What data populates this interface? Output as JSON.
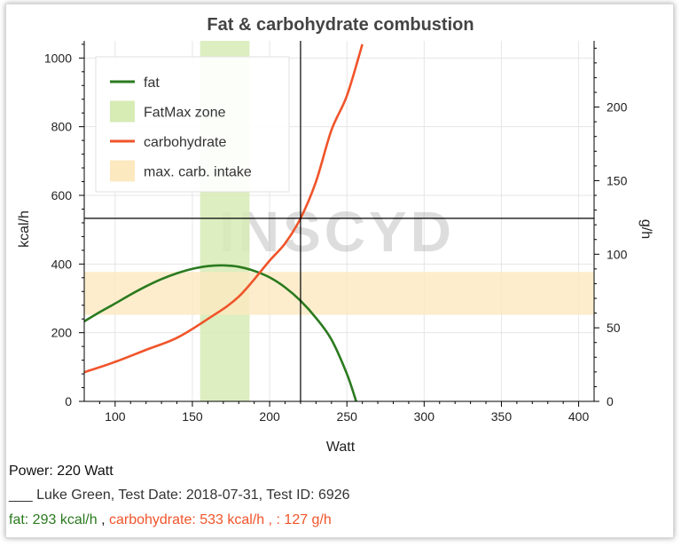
{
  "chart_data": {
    "type": "line",
    "title": "Fat & carbohydrate combustion",
    "xlabel": "Watt",
    "ylabel": "kcal/h",
    "y2label": "g/h",
    "xlim": [
      80,
      410
    ],
    "ylim": [
      0,
      1050
    ],
    "y2lim": [
      0,
      245
    ],
    "xticks": [
      100,
      150,
      200,
      250,
      300,
      350,
      400
    ],
    "yticks": [
      0,
      200,
      400,
      600,
      800,
      1000
    ],
    "y2ticks": [
      0,
      50,
      100,
      150,
      200
    ],
    "grid": true,
    "legend_position": "top-left",
    "series": [
      {
        "name": "fat",
        "color": "#2a7a1e",
        "x": [
          80,
          90,
          100,
          110,
          120,
          130,
          140,
          150,
          160,
          170,
          180,
          190,
          200,
          210,
          220,
          230,
          240,
          250,
          256
        ],
        "y": [
          233,
          260,
          285,
          311,
          335,
          356,
          373,
          386,
          394,
          396,
          392,
          380,
          361,
          332,
          293,
          243,
          180,
          80,
          0
        ]
      },
      {
        "name": "carbohydrate",
        "color": "#f0542a",
        "x": [
          80,
          100,
          120,
          140,
          160,
          180,
          200,
          210,
          220,
          230,
          240,
          250,
          260
        ],
        "y": [
          85,
          115,
          150,
          185,
          240,
          305,
          410,
          460,
          533,
          640,
          790,
          890,
          1040
        ]
      }
    ],
    "zones": [
      {
        "name": "FatMax zone",
        "axis": "x",
        "from": 155,
        "to": 187,
        "color": "#d7ebb5"
      },
      {
        "name": "max. carb. intake",
        "axis": "y",
        "from": 252,
        "to": 377,
        "color": "#fde9c0"
      }
    ],
    "crosshair": {
      "x": 220,
      "y": 533
    },
    "watermark": "INSCYD"
  },
  "info": {
    "power": "Power: 220 Watt",
    "person": "___ Luke Green, Test Date: 2018-07-31, Test ID: 6926",
    "fat": "fat: 293 kcal/h",
    "sep": " , ",
    "carb": "carbohydrate: 533 kcal/h , : 127 g/h"
  }
}
